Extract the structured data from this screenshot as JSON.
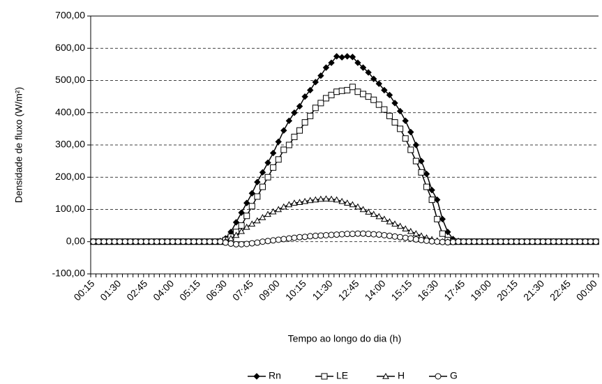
{
  "chart_data": {
    "type": "line",
    "y_label": "Densidade de fluxo (W/m²)",
    "x_label": "Tempo ao longo do dia (h)",
    "categories": [
      "00:15",
      null,
      null,
      null,
      null,
      "01:30",
      null,
      null,
      null,
      null,
      "02:45",
      null,
      null,
      null,
      null,
      "04:00",
      null,
      null,
      null,
      null,
      "05:15",
      null,
      null,
      null,
      null,
      "06:30",
      null,
      null,
      null,
      null,
      "07:45",
      null,
      null,
      null,
      null,
      "09:00",
      null,
      null,
      null,
      null,
      "10:15",
      null,
      null,
      null,
      null,
      "11:30",
      null,
      null,
      null,
      null,
      "12:45",
      null,
      null,
      null,
      null,
      "14:00",
      null,
      null,
      null,
      null,
      "15:15",
      null,
      null,
      null,
      null,
      "16:30",
      null,
      null,
      null,
      null,
      "17:45",
      null,
      null,
      null,
      null,
      "19:00",
      null,
      null,
      null,
      null,
      "20:15",
      null,
      null,
      null,
      null,
      "21:30",
      null,
      null,
      null,
      null,
      "22:45",
      null,
      null,
      null,
      null,
      "00:00"
    ],
    "series": [
      {
        "name": "Rn",
        "color": "#000000",
        "marker": "diamond",
        "values": [
          0,
          0,
          0,
          0,
          0,
          0,
          0,
          0,
          0,
          0,
          0,
          0,
          0,
          0,
          0,
          0,
          0,
          0,
          0,
          0,
          0,
          0,
          0,
          0,
          2,
          10,
          30,
          60,
          90,
          120,
          150,
          185,
          215,
          245,
          275,
          310,
          345,
          375,
          400,
          420,
          450,
          470,
          495,
          515,
          540,
          555,
          575,
          572,
          575,
          573,
          555,
          540,
          525,
          505,
          490,
          470,
          455,
          430,
          405,
          375,
          340,
          300,
          250,
          210,
          160,
          130,
          70,
          30,
          8,
          2,
          0,
          0,
          0,
          0,
          0,
          0,
          0,
          0,
          0,
          0,
          0,
          0,
          0,
          0,
          0,
          0,
          0,
          0,
          0,
          0,
          0,
          0,
          0,
          0,
          0,
          0
        ]
      },
      {
        "name": "LE",
        "color": "#000000",
        "marker": "square",
        "values": [
          0,
          0,
          0,
          0,
          0,
          0,
          0,
          0,
          0,
          0,
          0,
          0,
          0,
          0,
          0,
          0,
          0,
          0,
          0,
          0,
          0,
          0,
          0,
          0,
          0,
          5,
          15,
          30,
          50,
          80,
          110,
          140,
          170,
          200,
          230,
          255,
          285,
          300,
          325,
          345,
          370,
          390,
          415,
          430,
          445,
          455,
          465,
          468,
          470,
          480,
          465,
          458,
          450,
          440,
          425,
          410,
          390,
          370,
          350,
          320,
          285,
          250,
          215,
          170,
          130,
          70,
          25,
          5,
          0,
          0,
          0,
          0,
          0,
          0,
          0,
          0,
          0,
          0,
          0,
          0,
          0,
          0,
          0,
          0,
          0,
          0,
          0,
          0,
          0,
          0,
          0,
          0,
          0,
          0,
          0,
          0
        ]
      },
      {
        "name": "H",
        "color": "#000000",
        "marker": "triangle",
        "values": [
          0,
          0,
          0,
          0,
          0,
          0,
          0,
          0,
          0,
          0,
          0,
          0,
          0,
          0,
          0,
          0,
          0,
          0,
          0,
          0,
          0,
          0,
          0,
          0,
          0,
          2,
          10,
          20,
          32,
          45,
          55,
          65,
          75,
          85,
          93,
          100,
          108,
          115,
          120,
          122,
          125,
          128,
          130,
          132,
          133,
          132,
          130,
          125,
          120,
          115,
          108,
          100,
          92,
          85,
          78,
          70,
          62,
          55,
          48,
          40,
          32,
          25,
          18,
          12,
          7,
          3,
          0,
          0,
          0,
          0,
          0,
          0,
          0,
          0,
          0,
          0,
          0,
          0,
          0,
          0,
          0,
          0,
          0,
          0,
          0,
          0,
          0,
          0,
          0,
          0,
          0,
          0,
          0,
          0,
          0,
          0
        ]
      },
      {
        "name": "G",
        "color": "#000000",
        "marker": "circle",
        "values": [
          0,
          0,
          0,
          0,
          0,
          0,
          0,
          0,
          0,
          0,
          0,
          0,
          0,
          0,
          0,
          0,
          0,
          0,
          0,
          0,
          0,
          0,
          0,
          0,
          0,
          -3,
          -6,
          -8,
          -8,
          -7,
          -5,
          -3,
          0,
          2,
          4,
          6,
          8,
          10,
          12,
          14,
          15,
          17,
          18,
          19,
          20,
          21,
          22,
          23,
          24,
          24,
          25,
          25,
          24,
          23,
          22,
          20,
          18,
          16,
          14,
          12,
          10,
          7,
          5,
          3,
          1,
          0,
          -1,
          -2,
          -1,
          0,
          0,
          0,
          0,
          0,
          0,
          0,
          0,
          0,
          0,
          0,
          0,
          0,
          0,
          0,
          0,
          0,
          0,
          0,
          0,
          0,
          0,
          0,
          0,
          0,
          0,
          0
        ]
      }
    ],
    "ylim": [
      -100,
      700
    ],
    "yticks": [
      {
        "value": -100,
        "label": "-100,00"
      },
      {
        "value": 0,
        "label": "0,00"
      },
      {
        "value": 100,
        "label": "100,00"
      },
      {
        "value": 200,
        "label": "200,00"
      },
      {
        "value": 300,
        "label": "300,00"
      },
      {
        "value": 400,
        "label": "400,00"
      },
      {
        "value": 500,
        "label": "500,00"
      },
      {
        "value": 600,
        "label": "600,00"
      },
      {
        "value": 700,
        "label": "700,00"
      }
    ],
    "grid": true,
    "legend": "bottom"
  }
}
